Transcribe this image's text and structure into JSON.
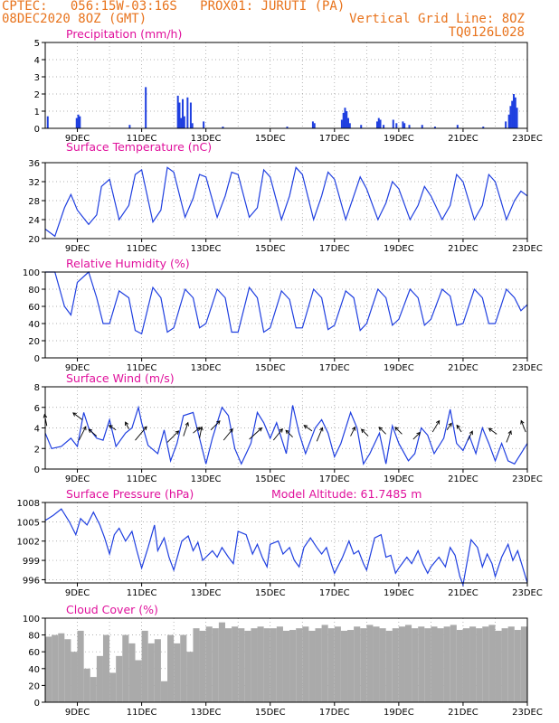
{
  "header": {
    "line1_left": "CPTEC:   056:15W-03:16S   PROX01: JURUTI (PA)",
    "line2_left": "08DEC2020 8OZ (GMT)",
    "line2_right": "Vertical Grid Line: 8OZ",
    "line3_right": "TQ0126L028"
  },
  "colors": {
    "header": "#e8731c",
    "title": "#e0119c",
    "series": "#1f3fe0",
    "cloud": "#aaaaaa",
    "grid": "#999999"
  },
  "chart_data": [
    {
      "type": "bar",
      "title": "Precipitation  (mm/h)",
      "x_tick_labels": [
        "9DEC",
        "11DEC",
        "13DEC",
        "15DEC",
        "17DEC",
        "19DEC",
        "21DEC",
        "23DEC"
      ],
      "ylim": [
        0,
        5
      ],
      "yticks": [
        0,
        1,
        2,
        3,
        4,
        5
      ],
      "x_range_days": [
        0,
        15
      ],
      "grid": "dotted",
      "bars": [
        [
          0.05,
          0.7
        ],
        [
          0.95,
          0.6
        ],
        [
          1,
          0.8
        ],
        [
          1.05,
          0.7
        ],
        [
          2.6,
          0.2
        ],
        [
          3.1,
          2.4
        ],
        [
          4.1,
          1.9
        ],
        [
          4.15,
          1.5
        ],
        [
          4.2,
          0.6
        ],
        [
          4.25,
          1.7
        ],
        [
          4.3,
          0.7
        ],
        [
          4.4,
          1.8
        ],
        [
          4.5,
          1.5
        ],
        [
          4.55,
          0.3
        ],
        [
          4.9,
          0.4
        ],
        [
          5.5,
          0.1
        ],
        [
          7.5,
          0.1
        ],
        [
          8.3,
          0.4
        ],
        [
          8.35,
          0.3
        ],
        [
          9.2,
          0.5
        ],
        [
          9.25,
          0.9
        ],
        [
          9.3,
          1.2
        ],
        [
          9.35,
          1.0
        ],
        [
          9.4,
          0.6
        ],
        [
          9.45,
          0.3
        ],
        [
          9.8,
          0.2
        ],
        [
          10.3,
          0.4
        ],
        [
          10.35,
          0.6
        ],
        [
          10.4,
          0.5
        ],
        [
          10.5,
          0.2
        ],
        [
          10.8,
          0.5
        ],
        [
          10.9,
          0.3
        ],
        [
          11.1,
          0.4
        ],
        [
          11.15,
          0.3
        ],
        [
          11.3,
          0.2
        ],
        [
          11.7,
          0.2
        ],
        [
          12.1,
          0.1
        ],
        [
          12.8,
          0.2
        ],
        [
          13.6,
          0.1
        ],
        [
          14.3,
          0.4
        ],
        [
          14.4,
          0.8
        ],
        [
          14.45,
          1.3
        ],
        [
          14.5,
          1.6
        ],
        [
          14.55,
          2.0
        ],
        [
          14.6,
          1.8
        ],
        [
          14.65,
          1.2
        ]
      ]
    },
    {
      "type": "line",
      "title": "Surface Temperature (nC)",
      "x_tick_labels": [
        "9DEC",
        "11DEC",
        "13DEC",
        "15DEC",
        "17DEC",
        "19DEC",
        "21DEC",
        "23DEC"
      ],
      "ylim": [
        20,
        36
      ],
      "yticks": [
        20,
        24,
        28,
        32,
        36
      ],
      "x": [
        0,
        0.3,
        0.6,
        0.8,
        1,
        1.35,
        1.6,
        1.75,
        2,
        2.3,
        2.6,
        2.8,
        3,
        3.35,
        3.6,
        3.8,
        4,
        4.35,
        4.6,
        4.8,
        5,
        5.35,
        5.6,
        5.8,
        6,
        6.35,
        6.6,
        6.8,
        7,
        7.35,
        7.6,
        7.8,
        8,
        8.35,
        8.6,
        8.8,
        9,
        9.35,
        9.6,
        9.8,
        10,
        10.35,
        10.6,
        10.8,
        11,
        11.35,
        11.6,
        11.8,
        12,
        12.35,
        12.6,
        12.8,
        13,
        13.35,
        13.6,
        13.8,
        14,
        14.35,
        14.6,
        14.8,
        15
      ],
      "y": [
        22,
        20.5,
        26.5,
        29.3,
        26,
        23,
        25,
        31,
        32.5,
        24,
        27,
        33.5,
        34.5,
        23.5,
        26,
        35,
        34,
        24.5,
        28.5,
        33.5,
        33,
        24.5,
        29,
        34,
        33.5,
        24.5,
        26.5,
        34.5,
        33,
        24,
        29,
        35,
        33.5,
        24,
        29,
        34,
        32.5,
        24,
        29,
        33,
        30.5,
        24,
        27.5,
        32,
        30.5,
        24,
        27,
        31,
        29,
        24,
        27,
        33.5,
        32,
        24,
        27,
        33.5,
        32,
        24,
        28,
        30,
        29
      ]
    },
    {
      "type": "line",
      "title": "Relative Humidity (%)",
      "x_tick_labels": [
        "9DEC",
        "11DEC",
        "13DEC",
        "15DEC",
        "17DEC",
        "19DEC",
        "21DEC",
        "23DEC"
      ],
      "ylim": [
        0,
        100
      ],
      "yticks": [
        0,
        20,
        40,
        60,
        80,
        100
      ],
      "x": [
        0,
        0.3,
        0.6,
        0.8,
        1,
        1.35,
        1.6,
        1.8,
        2,
        2.3,
        2.6,
        2.8,
        3,
        3.35,
        3.6,
        3.8,
        4,
        4.35,
        4.6,
        4.8,
        5,
        5.35,
        5.6,
        5.8,
        6,
        6.35,
        6.6,
        6.8,
        7,
        7.35,
        7.6,
        7.8,
        8,
        8.35,
        8.6,
        8.8,
        9,
        9.35,
        9.6,
        9.8,
        10,
        10.35,
        10.6,
        10.8,
        11,
        11.35,
        11.6,
        11.8,
        12,
        12.35,
        12.6,
        12.8,
        13,
        13.35,
        13.6,
        13.8,
        14,
        14.35,
        14.6,
        14.8,
        15
      ],
      "y": [
        100,
        100,
        60,
        50,
        88,
        100,
        70,
        40,
        40,
        78,
        70,
        32,
        28,
        82,
        70,
        30,
        35,
        80,
        70,
        35,
        40,
        80,
        70,
        30,
        30,
        82,
        70,
        30,
        35,
        78,
        68,
        35,
        35,
        80,
        70,
        33,
        38,
        78,
        70,
        32,
        40,
        80,
        70,
        38,
        45,
        80,
        70,
        38,
        45,
        80,
        72,
        38,
        40,
        80,
        70,
        40,
        40,
        80,
        70,
        55,
        62
      ]
    },
    {
      "type": "line",
      "title": "Surface Wind (m/s)",
      "x_tick_labels": [
        "9DEC",
        "11DEC",
        "13DEC",
        "15DEC",
        "17DEC",
        "19DEC",
        "21DEC",
        "23DEC"
      ],
      "ylim": [
        0,
        8
      ],
      "yticks": [
        0,
        2,
        4,
        6,
        8
      ],
      "x": [
        0,
        0.2,
        0.5,
        0.8,
        1,
        1.2,
        1.35,
        1.6,
        1.8,
        2,
        2.2,
        2.5,
        2.7,
        2.9,
        3,
        3.2,
        3.5,
        3.7,
        3.9,
        4.1,
        4.3,
        4.6,
        4.8,
        5,
        5.2,
        5.5,
        5.7,
        5.9,
        6.1,
        6.4,
        6.6,
        6.8,
        7,
        7.2,
        7.5,
        7.7,
        7.9,
        8.1,
        8.4,
        8.6,
        8.8,
        9,
        9.2,
        9.5,
        9.7,
        9.9,
        10.1,
        10.4,
        10.6,
        10.8,
        11,
        11.3,
        11.5,
        11.7,
        11.9,
        12.1,
        12.4,
        12.6,
        12.8,
        13,
        13.2,
        13.4,
        13.6,
        13.8,
        14,
        14.2,
        14.4,
        14.6,
        14.8,
        15
      ],
      "y": [
        3.5,
        2,
        2.2,
        3,
        2.2,
        5.5,
        4,
        3,
        2.8,
        4.8,
        2.2,
        3.5,
        4,
        6,
        4.5,
        2.3,
        1.5,
        3.8,
        0.8,
        2.5,
        5.2,
        5.5,
        3,
        0.5,
        3,
        6,
        5.2,
        2,
        0.5,
        2.5,
        5.5,
        4.5,
        3,
        4.5,
        1.5,
        6.2,
        3.5,
        1.5,
        4,
        4.8,
        3.5,
        1.2,
        2.5,
        5.5,
        4,
        0.5,
        1.5,
        3.5,
        0.5,
        4.2,
        2.5,
        0.8,
        1.5,
        4,
        3.3,
        1.5,
        3,
        5.8,
        2.5,
        1.8,
        3.2,
        1.5,
        4,
        2.5,
        0.8,
        2.5,
        0.8,
        0.5,
        1.5,
        2.5
      ],
      "arrows": [
        [
          0.05,
          4.2,
          -0.1,
          0.5
        ],
        [
          1.05,
          2.8,
          0.3,
          0.6
        ],
        [
          1.15,
          4.8,
          -0.4,
          0.3
        ],
        [
          1.6,
          3.2,
          -0.35,
          0.3
        ],
        [
          2.2,
          3.8,
          -0.3,
          0.2
        ],
        [
          2.6,
          3.9,
          -0.15,
          0.3
        ],
        [
          2.8,
          2.8,
          0.5,
          0.6
        ],
        [
          3.8,
          2.6,
          0.5,
          0.5
        ],
        [
          4.3,
          3.2,
          0.2,
          0.6
        ],
        [
          4.6,
          3.5,
          0.3,
          0.25
        ],
        [
          4.8,
          3.0,
          0.1,
          0.5
        ],
        [
          5.15,
          3.8,
          0.4,
          0.4
        ],
        [
          5.55,
          2.8,
          0.4,
          0.5
        ],
        [
          6.35,
          2.9,
          0.55,
          0.5
        ],
        [
          7.1,
          2.8,
          0.4,
          0.5
        ],
        [
          7.7,
          3.1,
          -0.3,
          0.3
        ],
        [
          8.3,
          3.7,
          -0.35,
          0.25
        ],
        [
          8.45,
          2.7,
          0.25,
          0.6
        ],
        [
          9.5,
          3.2,
          0.2,
          0.4
        ],
        [
          10.05,
          3.2,
          -0.3,
          0.3
        ],
        [
          10.6,
          3.4,
          -0.3,
          0.3
        ],
        [
          11.1,
          3.4,
          -0.3,
          0.3
        ],
        [
          11.45,
          2.9,
          0.3,
          0.3
        ],
        [
          12.05,
          3.6,
          0.3,
          0.5
        ],
        [
          12.5,
          3.8,
          0.2,
          0.3
        ],
        [
          12.95,
          3.6,
          -0.2,
          0.3
        ],
        [
          13.15,
          2.8,
          0.2,
          0.4
        ],
        [
          14.05,
          3.4,
          -0.35,
          0.25
        ],
        [
          14.35,
          2.6,
          0.2,
          0.5
        ],
        [
          14.95,
          3.6,
          -0.2,
          0.5
        ]
      ]
    },
    {
      "type": "line",
      "title": "Surface Pressure (hPa)",
      "annotation": "Model Altitude: 61.7485 m",
      "x_tick_labels": [
        "9DEC",
        "11DEC",
        "13DEC",
        "15DEC",
        "17DEC",
        "19DEC",
        "21DEC",
        "23DEC"
      ],
      "ylim": [
        995.5,
        1008
      ],
      "yticks": [
        996,
        999,
        1002,
        1005,
        1008
      ],
      "x": [
        0,
        0.25,
        0.5,
        0.75,
        0.95,
        1.1,
        1.3,
        1.5,
        1.7,
        1.85,
        2,
        2.15,
        2.3,
        2.5,
        2.7,
        2.85,
        3,
        3.2,
        3.4,
        3.5,
        3.7,
        3.85,
        4,
        4.25,
        4.45,
        4.6,
        4.75,
        4.9,
        5,
        5.2,
        5.35,
        5.5,
        5.7,
        5.85,
        6,
        6.25,
        6.45,
        6.6,
        6.75,
        6.9,
        7,
        7.25,
        7.4,
        7.6,
        7.75,
        7.9,
        8.05,
        8.25,
        8.45,
        8.6,
        8.75,
        8.9,
        9,
        9.25,
        9.45,
        9.6,
        9.75,
        9.9,
        10,
        10.25,
        10.45,
        10.6,
        10.75,
        10.9,
        11,
        11.25,
        11.4,
        11.6,
        11.75,
        11.9,
        12,
        12.25,
        12.45,
        12.6,
        12.75,
        12.9,
        13,
        13.25,
        13.45,
        13.6,
        13.75,
        13.9,
        14,
        14.2,
        14.4,
        14.55,
        14.7,
        14.85,
        15
      ],
      "y": [
        1005.2,
        1006,
        1007,
        1005,
        1003,
        1005.5,
        1004.5,
        1006.5,
        1004.5,
        1002.5,
        1000,
        1003,
        1004,
        1002,
        1003.5,
        1000.5,
        997.8,
        1001,
        1004.5,
        1000.5,
        1002.5,
        999.5,
        997.5,
        1002,
        1002.8,
        1000.5,
        1001.8,
        999,
        999.5,
        1000.5,
        999.5,
        1001,
        999.5,
        998.5,
        1003.5,
        1003,
        1000,
        1001.5,
        999.5,
        998,
        1001.5,
        1002,
        1000,
        1001,
        999,
        998,
        1001,
        1002.5,
        1001,
        1000,
        1001,
        998.5,
        997,
        999.5,
        1002,
        1000,
        1000.5,
        998.5,
        997.5,
        1002.5,
        1003,
        999.5,
        999.8,
        997,
        997.8,
        999.5,
        998.5,
        1000.5,
        998.5,
        997,
        998,
        999.5,
        998,
        1001,
        999.8,
        996.5,
        995.2,
        1002.2,
        1001,
        998,
        1000,
        998.5,
        996.5,
        999.5,
        1001.5,
        999,
        1000.5,
        998,
        995.5
      ]
    },
    {
      "type": "bar",
      "title": "Cloud Cover (%)",
      "x_tick_labels": [
        "9DEC",
        "11DEC",
        "13DEC",
        "15DEC",
        "17DEC",
        "19DEC",
        "21DEC",
        "23DEC"
      ],
      "ylim": [
        0,
        100
      ],
      "yticks": [
        0,
        20,
        40,
        60,
        80,
        100
      ],
      "x": [
        0,
        0.2,
        0.4,
        0.6,
        0.8,
        1.0,
        1.2,
        1.4,
        1.6,
        1.8,
        2.0,
        2.2,
        2.4,
        2.6,
        2.8,
        3.0,
        3.2,
        3.4,
        3.6,
        3.8,
        4.0,
        4.2,
        4.4,
        4.6,
        4.8,
        5.0,
        5.2,
        5.4,
        5.6,
        5.8,
        6.0,
        6.2,
        6.4,
        6.6,
        6.8,
        7.0,
        7.2,
        7.4,
        7.6,
        7.8,
        8.0,
        8.2,
        8.4,
        8.6,
        8.8,
        9.0,
        9.2,
        9.4,
        9.6,
        9.8,
        10.0,
        10.2,
        10.4,
        10.6,
        10.8,
        11.0,
        11.2,
        11.4,
        11.6,
        11.8,
        12.0,
        12.2,
        12.4,
        12.6,
        12.8,
        13.0,
        13.2,
        13.4,
        13.6,
        13.8,
        14.0,
        14.2,
        14.4,
        14.6,
        14.8,
        15.0
      ],
      "values": [
        78,
        80,
        82,
        75,
        60,
        85,
        40,
        30,
        55,
        80,
        35,
        55,
        80,
        70,
        50,
        85,
        70,
        75,
        25,
        80,
        70,
        80,
        60,
        88,
        85,
        90,
        88,
        95,
        88,
        90,
        88,
        85,
        88,
        90,
        88,
        88,
        90,
        85,
        86,
        88,
        90,
        85,
        88,
        92,
        88,
        90,
        85,
        86,
        90,
        88,
        92,
        90,
        88,
        85,
        88,
        90,
        92,
        88,
        90,
        88,
        90,
        88,
        90,
        92,
        86,
        88,
        90,
        88,
        90,
        92,
        85,
        88,
        90,
        86,
        90,
        88
      ]
    }
  ]
}
